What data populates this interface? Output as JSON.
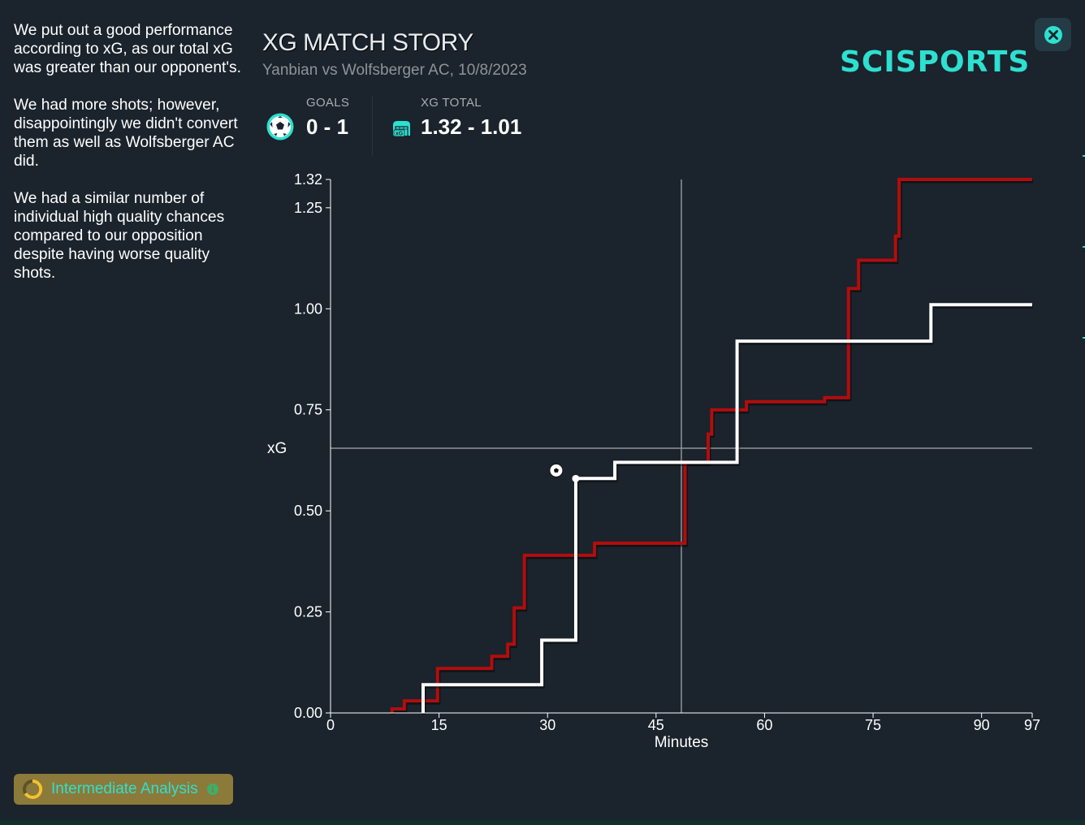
{
  "insights": [
    "We put out a good performance according to xG, as our total xG was greater than our opponent's.",
    "We had more shots; however, disappointingly we didn't convert them as well as Wolfsberger AC did.",
    "We had a similar number of individual high quality chances compared to our opposition despite having worse quality shots."
  ],
  "header": {
    "title": "XG MATCH STORY",
    "subtitle": "Yanbian vs Wolfsberger AC, 10/8/2023",
    "logo": "SCISPORTS"
  },
  "stats": {
    "goals_label": "GOALS",
    "goals_value": "0 - 1",
    "xg_label": "XG TOTAL",
    "xg_value": "1.32 - 1.01",
    "xg_icon_text": "xG"
  },
  "badge": {
    "label": "Intermediate Analysis"
  },
  "icons": {
    "close": "close-icon",
    "ball": "football-icon",
    "xg": "xg-icon",
    "info": "info-icon",
    "level": "progress-ring-icon"
  },
  "colors": {
    "background": "#1b232c",
    "accent": "#2de0d0",
    "team_red": "#b20d0d",
    "team_white": "#ffffff",
    "badge": "#8c7a3a"
  },
  "chart_data": {
    "type": "line",
    "step": true,
    "xlabel": "Minutes",
    "ylabel": "xG",
    "xlim": [
      0,
      97
    ],
    "ylim": [
      0,
      1.32
    ],
    "xticks": [
      "0",
      "15",
      "30",
      "45",
      "60",
      "75",
      "90",
      "97"
    ],
    "xtick_values": [
      0,
      15,
      30,
      45,
      60,
      75,
      90,
      97
    ],
    "yticks": [
      "0.00",
      "0.25",
      "0.50",
      "0.75",
      "1.00",
      "1.25",
      "1.32"
    ],
    "ytick_values": [
      0,
      0.25,
      0.5,
      0.75,
      1.0,
      1.25,
      1.32
    ],
    "reference_lines": {
      "vertical_x": 48.5,
      "horizontal_y": 0.655
    },
    "goal_markers": [
      {
        "x": 31.2,
        "y": 0.6,
        "icon": "football-icon"
      }
    ],
    "series": [
      {
        "color": "#b20d0d",
        "points": [
          [
            8.5,
            0
          ],
          [
            8.5,
            0.01
          ],
          [
            10.2,
            0.01
          ],
          [
            10.2,
            0.03
          ],
          [
            12.4,
            0.03
          ],
          [
            12.4,
            0.03
          ],
          [
            14.8,
            0.03
          ],
          [
            14.8,
            0.11
          ],
          [
            22.3,
            0.11
          ],
          [
            22.3,
            0.14
          ],
          [
            24.5,
            0.14
          ],
          [
            24.5,
            0.17
          ],
          [
            25.4,
            0.17
          ],
          [
            25.4,
            0.26
          ],
          [
            26.8,
            0.26
          ],
          [
            26.8,
            0.39
          ],
          [
            36.5,
            0.39
          ],
          [
            36.5,
            0.42
          ],
          [
            49.0,
            0.42
          ],
          [
            49.0,
            0.62
          ],
          [
            52.2,
            0.62
          ],
          [
            52.2,
            0.69
          ],
          [
            52.7,
            0.69
          ],
          [
            52.7,
            0.75
          ],
          [
            57.5,
            0.75
          ],
          [
            57.5,
            0.77
          ],
          [
            68.3,
            0.77
          ],
          [
            68.3,
            0.78
          ],
          [
            71.6,
            0.78
          ],
          [
            71.6,
            1.05
          ],
          [
            73.0,
            1.05
          ],
          [
            73.0,
            1.12
          ],
          [
            78.1,
            1.12
          ],
          [
            78.1,
            1.18
          ],
          [
            78.6,
            1.18
          ],
          [
            78.6,
            1.32
          ],
          [
            97,
            1.32
          ]
        ]
      },
      {
        "color": "#ffffff",
        "points": [
          [
            12.8,
            0
          ],
          [
            12.8,
            0.07
          ],
          [
            29.2,
            0.07
          ],
          [
            29.2,
            0.18
          ],
          [
            33.9,
            0.18
          ],
          [
            33.9,
            0.58
          ],
          [
            39.3,
            0.58
          ],
          [
            39.3,
            0.62
          ],
          [
            56.2,
            0.62
          ],
          [
            56.2,
            0.92
          ],
          [
            83.0,
            0.92
          ],
          [
            83.0,
            1.01
          ],
          [
            97,
            1.01
          ]
        ]
      }
    ]
  }
}
